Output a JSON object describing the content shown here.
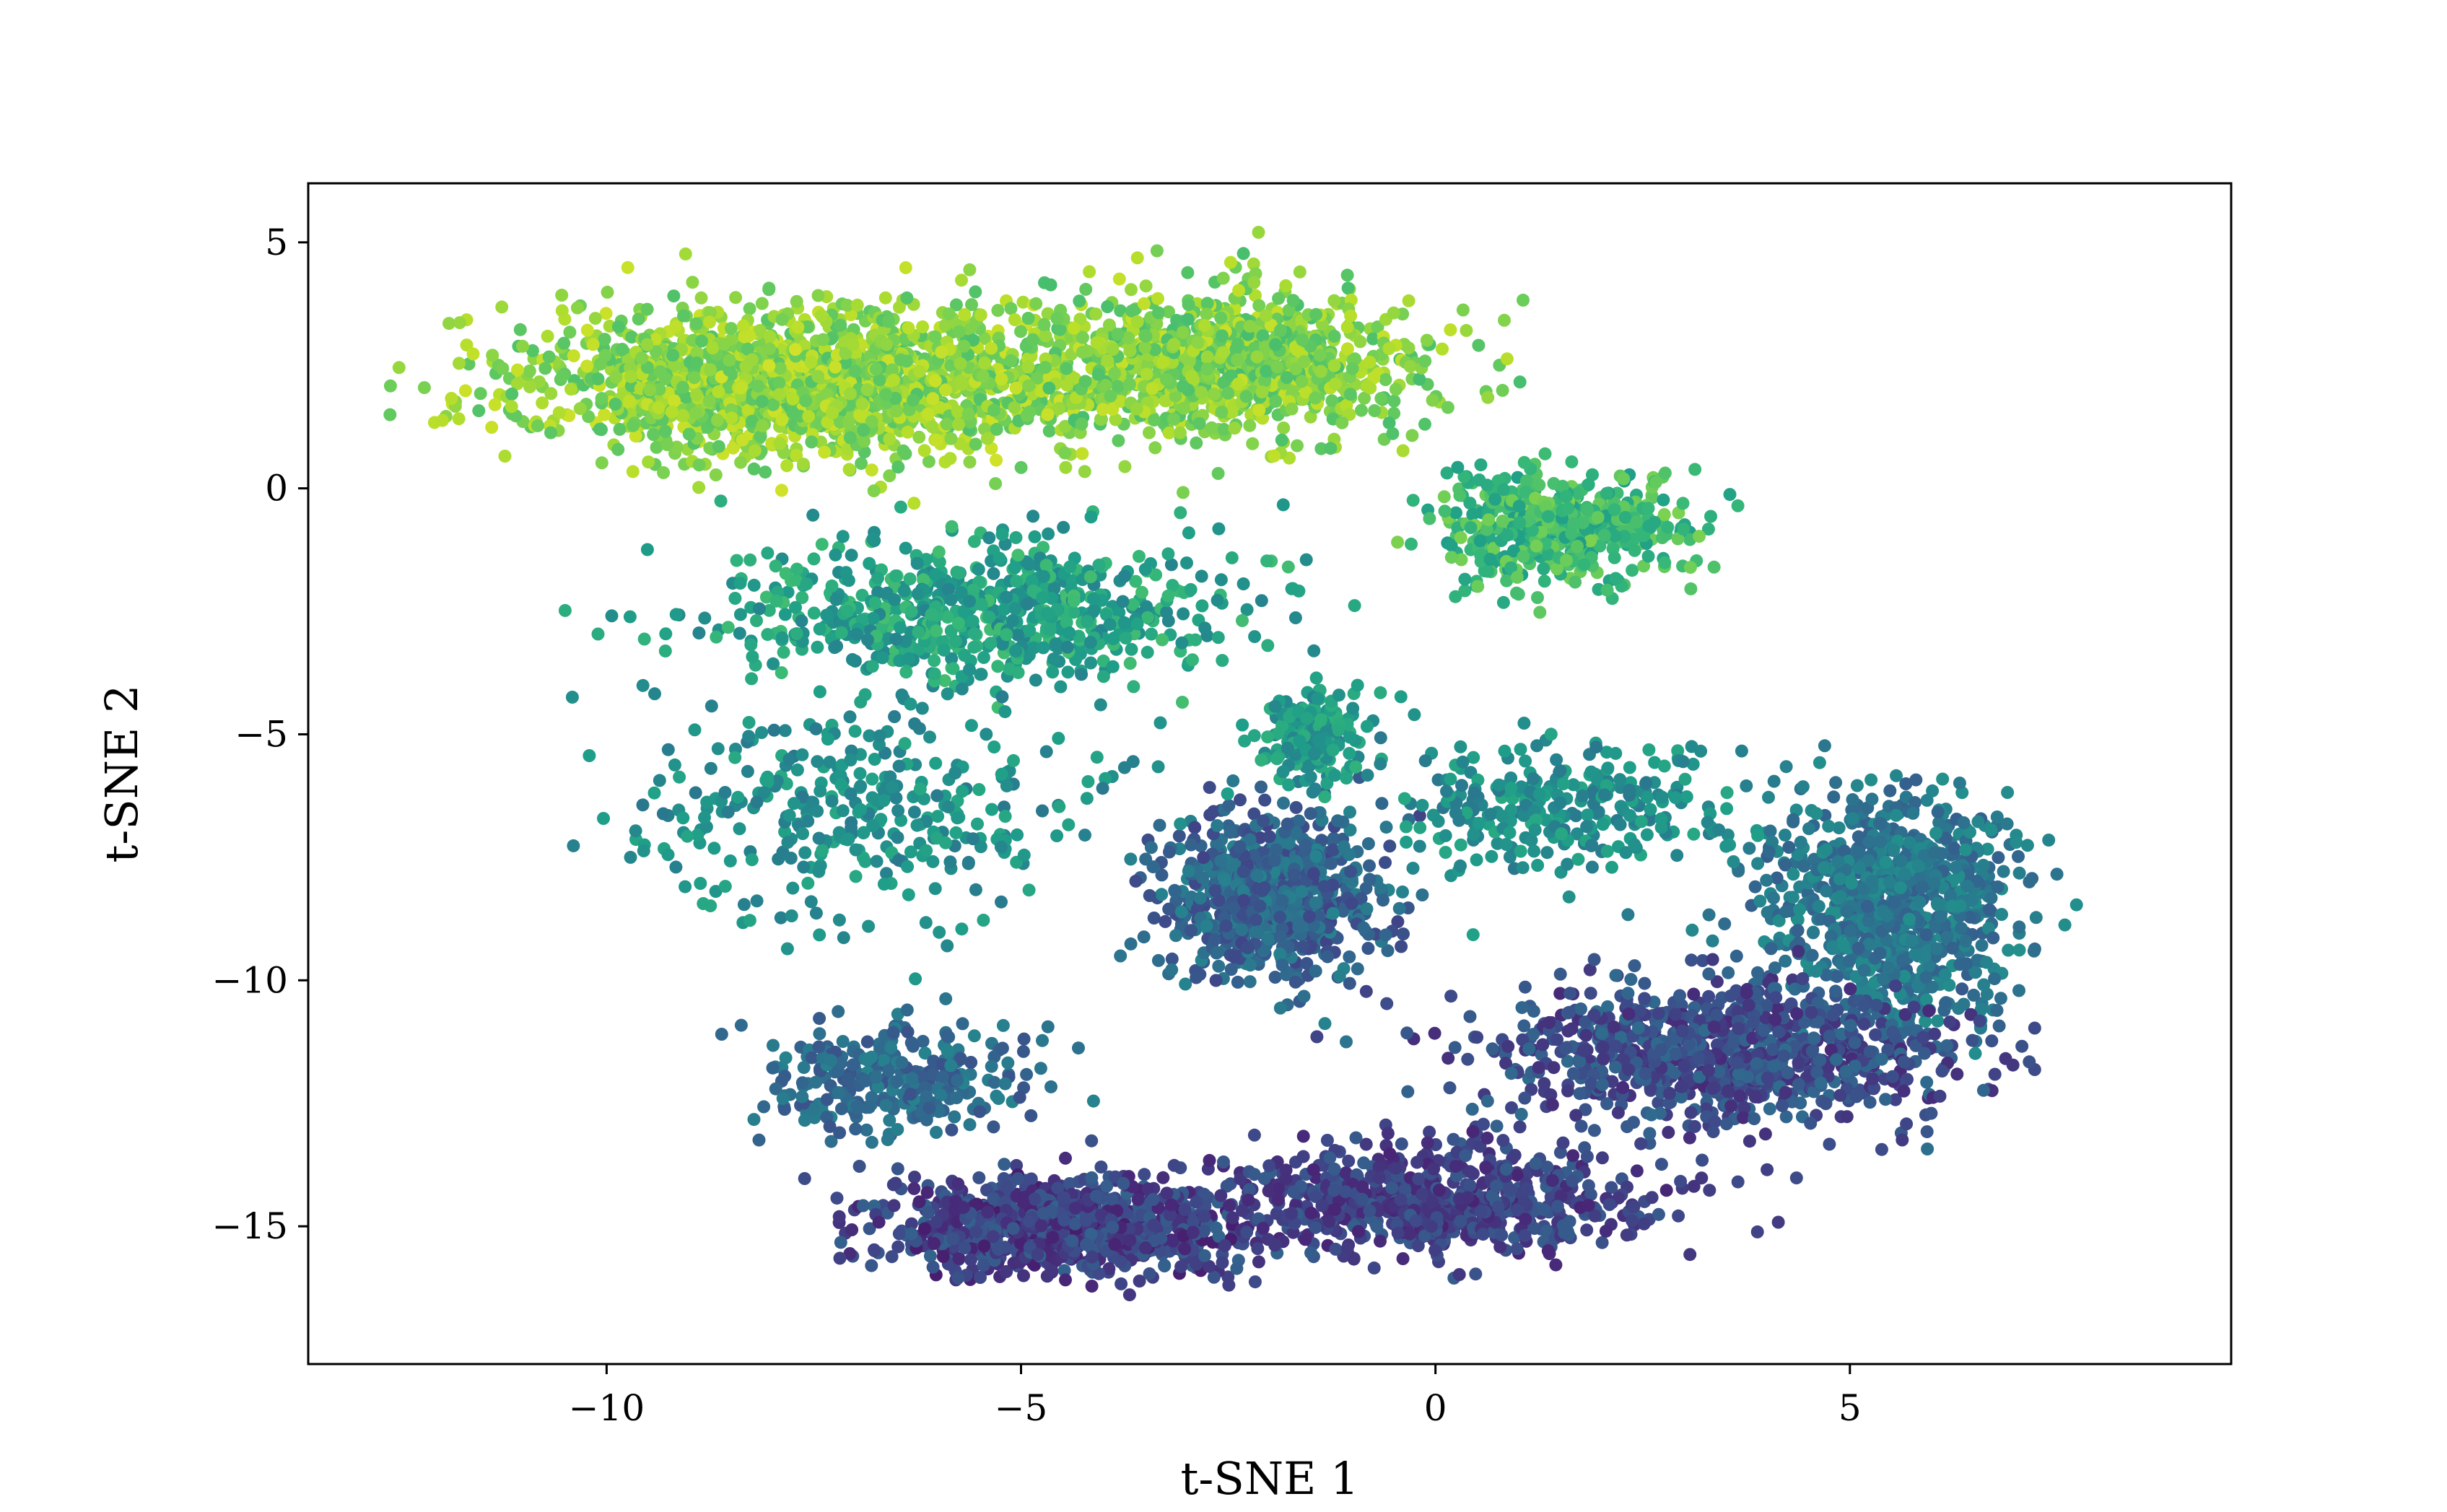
{
  "chart_data": {
    "type": "scatter",
    "title": "",
    "xlabel": "t-SNE 1",
    "ylabel": "t-SNE 2",
    "xlim": [
      -13.6,
      9.6
    ],
    "ylim": [
      -17.8,
      6.2
    ],
    "x_ticks": [
      -10,
      -5,
      0,
      5
    ],
    "x_tick_labels": [
      "−10",
      "−5",
      "0",
      "5"
    ],
    "y_ticks": [
      5,
      0,
      -5,
      -10,
      -15
    ],
    "y_tick_labels": [
      "5",
      "0",
      "−5",
      "−10",
      "−15"
    ],
    "grid": false,
    "legend": "none",
    "colormap": "viridis",
    "colormap_stops": [
      "#440154",
      "#482878",
      "#3e4989",
      "#31688e",
      "#26828e",
      "#1f9e89",
      "#35b779",
      "#6ece58",
      "#b5de2b",
      "#fde725"
    ],
    "clusters": [
      {
        "center": [
          -7.5,
          2.2
        ],
        "spread": [
          3.2,
          1.4
        ],
        "count": 1700,
        "color_value": [
          0.72,
          0.93
        ]
      },
      {
        "center": [
          -2.5,
          2.5
        ],
        "spread": [
          2.2,
          1.3
        ],
        "count": 1000,
        "color_value": [
          0.7,
          0.92
        ]
      },
      {
        "center": [
          1.5,
          -0.8
        ],
        "spread": [
          1.4,
          1.0
        ],
        "count": 500,
        "color_value": [
          0.55,
          0.8
        ]
      },
      {
        "center": [
          -5.5,
          -2.5
        ],
        "spread": [
          2.8,
          1.3
        ],
        "count": 700,
        "color_value": [
          0.45,
          0.7
        ]
      },
      {
        "center": [
          -2.0,
          -8.2
        ],
        "spread": [
          1.2,
          1.5
        ],
        "count": 800,
        "color_value": [
          0.2,
          0.45
        ]
      },
      {
        "center": [
          -1.5,
          -5.0
        ],
        "spread": [
          0.6,
          0.8
        ],
        "count": 200,
        "color_value": [
          0.45,
          0.65
        ]
      },
      {
        "center": [
          5.5,
          -8.5
        ],
        "spread": [
          1.3,
          2.0
        ],
        "count": 900,
        "color_value": [
          0.3,
          0.5
        ]
      },
      {
        "center": [
          3.5,
          -11.5
        ],
        "spread": [
          2.5,
          1.3
        ],
        "count": 900,
        "color_value": [
          0.12,
          0.35
        ]
      },
      {
        "center": [
          -4.5,
          -15.0
        ],
        "spread": [
          2.0,
          0.9
        ],
        "count": 900,
        "color_value": [
          0.08,
          0.32
        ]
      },
      {
        "center": [
          0.0,
          -14.5
        ],
        "spread": [
          2.5,
          1.0
        ],
        "count": 700,
        "color_value": [
          0.1,
          0.3
        ]
      },
      {
        "center": [
          -6.5,
          -12.0
        ],
        "spread": [
          1.5,
          1.0
        ],
        "count": 300,
        "color_value": [
          0.25,
          0.45
        ]
      },
      {
        "center": [
          -7.0,
          -6.5
        ],
        "spread": [
          2.6,
          2.0
        ],
        "count": 350,
        "color_value": [
          0.4,
          0.6
        ]
      },
      {
        "center": [
          1.5,
          -6.5
        ],
        "spread": [
          2.0,
          1.2
        ],
        "count": 300,
        "color_value": [
          0.4,
          0.6
        ]
      }
    ]
  }
}
